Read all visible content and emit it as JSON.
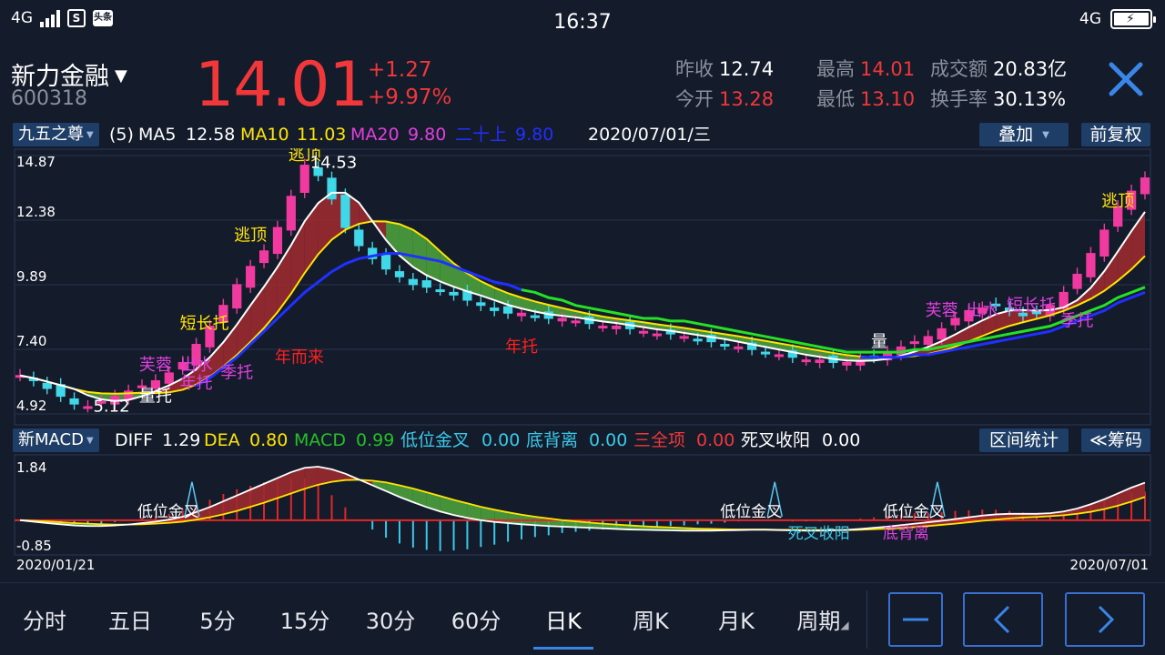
{
  "status_bar": {
    "network": "4G",
    "app_icon_1": "S",
    "app_icon_2": "头条",
    "time": "16:37",
    "network_right": "4G",
    "battery_icon": "battery-charging-icon"
  },
  "quote": {
    "name": "新力金融",
    "code": "600318",
    "price": "14.01",
    "change": "+1.27",
    "change_pct": "+9.97%",
    "stats": [
      {
        "label": "昨收",
        "value": "12.74",
        "red": false
      },
      {
        "label": "今开",
        "value": "13.28",
        "red": true
      },
      {
        "label": "最高",
        "value": "14.01",
        "red": true
      },
      {
        "label": "最低",
        "value": "13.10",
        "red": true
      },
      {
        "label": "成交额",
        "value": "20.83亿",
        "red": false
      },
      {
        "label": "换手率",
        "value": "30.13%",
        "red": false
      }
    ]
  },
  "ma_row": {
    "indicator": "九五之尊",
    "param": "(5)",
    "ma5_label": "MA5",
    "ma5": "12.58",
    "ma10_label": "MA10",
    "ma10": "11.03",
    "ma20_label": "MA20",
    "ma20": "9.80",
    "ershi_label": "二十上",
    "ershi": "9.80",
    "date": "2020/07/01/三",
    "overlay": "叠加",
    "adjust": "前复权"
  },
  "macd_row": {
    "indicator": "新MACD",
    "diff_label": "DIFF",
    "diff": "1.29",
    "dea_label": "DEA",
    "dea": "0.80",
    "macd_label": "MACD",
    "macd": "0.99",
    "dwjc_label": "低位金叉",
    "dwjc": "0.00",
    "dbl_label": "底背离",
    "dbl": "0.00",
    "sqx_label": "三全项",
    "sqx": "0.00",
    "scsy_label": "死叉收阳",
    "scsy": "0.00",
    "range_stats": "区间统计",
    "chips": "≪筹码"
  },
  "kline": {
    "y_ticks": [
      "14.87",
      "12.38",
      "9.89",
      "7.40",
      "4.92"
    ],
    "y_range": [
      4.92,
      14.87
    ],
    "high_label": "14.53",
    "low_label": "5.12",
    "annotations": [
      {
        "text": "逃顶",
        "color": "#ffe500",
        "i": 21,
        "price": 14.7
      },
      {
        "text": "逃顶",
        "color": "#ffe500",
        "i": 17,
        "price": 11.6
      },
      {
        "text": "逃顶",
        "color": "#ffe500",
        "i": 81,
        "price": 12.9
      },
      {
        "text": "短长托",
        "color": "#ffe500",
        "i": 13,
        "price": 8.2
      },
      {
        "text": "芙蓉",
        "color": "#e040e0",
        "i": 10,
        "price": 6.6
      },
      {
        "text": "出水",
        "color": "#e040e0",
        "i": 13,
        "price": 6.6
      },
      {
        "text": "季托",
        "color": "#e040e0",
        "i": 16,
        "price": 6.3
      },
      {
        "text": "年托",
        "color": "#e040e0",
        "i": 13,
        "price": 5.9
      },
      {
        "text": "量托",
        "color": "#ffffff",
        "i": 10,
        "price": 5.4
      },
      {
        "text": "年而来",
        "color": "#ff2020",
        "i": 20,
        "price": 6.9
      },
      {
        "text": "年托",
        "color": "#ff2020",
        "i": 37,
        "price": 7.3
      },
      {
        "text": "芙蓉",
        "color": "#e040e0",
        "i": 68,
        "price": 8.7
      },
      {
        "text": "出水",
        "color": "#e040e0",
        "i": 71,
        "price": 8.7
      },
      {
        "text": "短长托",
        "color": "#e040e0",
        "i": 74,
        "price": 8.9
      },
      {
        "text": "季托",
        "color": "#e040e0",
        "i": 78,
        "price": 8.3
      },
      {
        "text": "量",
        "color": "#ffffff",
        "i": 64,
        "price": 7.5
      }
    ]
  },
  "macd": {
    "y_ticks": [
      "1.84",
      "-0.85"
    ],
    "y_range": [
      -0.85,
      1.84
    ],
    "x_start": "2020/01/21",
    "x_end": "2020/07/01",
    "annotations": [
      {
        "text": "低位金叉",
        "color": "#ffffff",
        "i": 10
      },
      {
        "text": "低位金叉",
        "color": "#ffffff",
        "i": 53
      },
      {
        "text": "低位金叉",
        "color": "#ffffff",
        "i": 65
      },
      {
        "text": "死叉收阳",
        "color": "#3ac8e8",
        "i": 58
      },
      {
        "text": "底背离",
        "color": "#e040e0",
        "i": 65
      }
    ]
  },
  "chart_data": {
    "type": "candlestick",
    "colors": {
      "up": "#f03aa0",
      "down": "#40d8e8",
      "ma5": "#ffffff",
      "ma10": "#ffe500",
      "ma20": "#25e025",
      "ershi": "#2030ff"
    },
    "close": [
      6.4,
      6.2,
      5.9,
      5.6,
      5.3,
      5.2,
      5.4,
      5.6,
      5.8,
      6.0,
      6.2,
      6.5,
      6.9,
      7.6,
      8.3,
      9.1,
      9.9,
      10.6,
      11.2,
      12.1,
      13.3,
      14.5,
      14.1,
      13.2,
      12.1,
      11.4,
      10.9,
      10.5,
      10.2,
      9.9,
      9.8,
      9.7,
      9.5,
      9.3,
      9.1,
      8.9,
      8.8,
      8.8,
      8.7,
      8.6,
      8.6,
      8.5,
      8.4,
      8.3,
      8.3,
      8.2,
      8.1,
      8.0,
      8.0,
      7.9,
      7.8,
      7.7,
      7.6,
      7.5,
      7.4,
      7.3,
      7.2,
      7.1,
      7.0,
      7.0,
      6.9,
      6.9,
      7.0,
      7.1,
      7.3,
      7.5,
      7.7,
      7.9,
      8.2,
      8.6,
      8.9,
      9.0,
      9.1,
      8.9,
      8.7,
      8.8,
      9.1,
      9.6,
      10.3,
      11.1,
      12.0,
      12.9,
      13.5,
      14.01
    ],
    "ma20": [
      null,
      null,
      null,
      null,
      null,
      null,
      null,
      null,
      null,
      null,
      null,
      null,
      null,
      6.0,
      6.3,
      6.7,
      7.1,
      7.6,
      8.1,
      8.6,
      9.1,
      9.6,
      10.0,
      10.4,
      10.7,
      10.9,
      11.0,
      11.1,
      11.1,
      11.0,
      10.9,
      10.8,
      10.6,
      10.4,
      10.2,
      10.0,
      9.9,
      9.7,
      9.6,
      9.4,
      9.3,
      9.1,
      9.0,
      8.9,
      8.8,
      8.7,
      8.6,
      8.6,
      8.5,
      8.5,
      8.4,
      8.3,
      8.2,
      8.1,
      8.0,
      7.9,
      7.8,
      7.7,
      7.6,
      7.5,
      7.4,
      7.3,
      7.3,
      7.3,
      7.3,
      7.3,
      7.4,
      7.4,
      7.5,
      7.6,
      7.7,
      7.8,
      7.9,
      8.0,
      8.1,
      8.2,
      8.3,
      8.5,
      8.7,
      8.9,
      9.1,
      9.4,
      9.6,
      9.8
    ],
    "ma20_green_until": 37,
    "macd_diff": [
      0.0,
      -0.05,
      -0.1,
      -0.14,
      -0.18,
      -0.2,
      -0.2,
      -0.18,
      -0.15,
      -0.1,
      -0.05,
      0.02,
      0.12,
      0.28,
      0.45,
      0.65,
      0.85,
      1.05,
      1.25,
      1.45,
      1.65,
      1.8,
      1.84,
      1.75,
      1.6,
      1.4,
      1.2,
      1.0,
      0.8,
      0.62,
      0.45,
      0.3,
      0.18,
      0.08,
      0.0,
      -0.06,
      -0.1,
      -0.14,
      -0.17,
      -0.2,
      -0.22,
      -0.24,
      -0.26,
      -0.28,
      -0.3,
      -0.32,
      -0.33,
      -0.34,
      -0.35,
      -0.36,
      -0.36,
      -0.36,
      -0.35,
      -0.34,
      -0.33,
      -0.33,
      -0.34,
      -0.35,
      -0.36,
      -0.36,
      -0.35,
      -0.33,
      -0.3,
      -0.26,
      -0.22,
      -0.17,
      -0.12,
      -0.07,
      -0.02,
      0.04,
      0.1,
      0.16,
      0.2,
      0.22,
      0.22,
      0.22,
      0.24,
      0.3,
      0.4,
      0.55,
      0.72,
      0.92,
      1.12,
      1.29
    ],
    "macd_dea": [
      0.0,
      -0.02,
      -0.04,
      -0.07,
      -0.1,
      -0.12,
      -0.14,
      -0.15,
      -0.15,
      -0.14,
      -0.12,
      -0.09,
      -0.05,
      0.02,
      0.1,
      0.2,
      0.32,
      0.46,
      0.6,
      0.76,
      0.92,
      1.08,
      1.22,
      1.32,
      1.38,
      1.39,
      1.36,
      1.3,
      1.2,
      1.09,
      0.96,
      0.83,
      0.7,
      0.58,
      0.46,
      0.36,
      0.27,
      0.19,
      0.12,
      0.06,
      0.0,
      -0.04,
      -0.08,
      -0.12,
      -0.15,
      -0.18,
      -0.21,
      -0.23,
      -0.25,
      -0.27,
      -0.29,
      -0.3,
      -0.31,
      -0.32,
      -0.32,
      -0.32,
      -0.33,
      -0.33,
      -0.34,
      -0.34,
      -0.34,
      -0.34,
      -0.33,
      -0.31,
      -0.29,
      -0.27,
      -0.24,
      -0.2,
      -0.16,
      -0.12,
      -0.07,
      -0.02,
      0.02,
      0.06,
      0.09,
      0.11,
      0.14,
      0.17,
      0.22,
      0.29,
      0.38,
      0.5,
      0.64,
      0.8
    ]
  },
  "toolbar": {
    "tabs": [
      "分时",
      "五日",
      "5分",
      "15分",
      "30分",
      "60分",
      "日K",
      "周K",
      "月K",
      "周期"
    ],
    "active_tab": "日K",
    "buttons": [
      "zoom-out-icon",
      "chevron-left-icon",
      "chevron-right-icon"
    ]
  }
}
